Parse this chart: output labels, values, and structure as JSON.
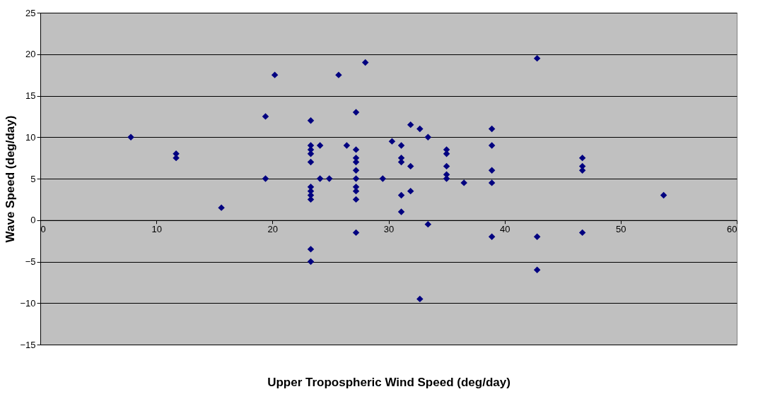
{
  "chart_data": {
    "type": "scatter",
    "xlabel": "Upper Tropospheric Wind Speed (deg/day)",
    "ylabel": "Wave Speed (deg/day)",
    "x": [
      7.8,
      11.7,
      11.7,
      15.6,
      19.4,
      19.4,
      20.2,
      23.3,
      23.3,
      23.3,
      23.3,
      23.3,
      23.3,
      23.3,
      23.3,
      23.3,
      23.3,
      23.3,
      24.1,
      24.1,
      24.9,
      25.7,
      26.4,
      27.2,
      27.2,
      27.2,
      27.2,
      27.2,
      27.2,
      27.2,
      27.2,
      27.2,
      27.2,
      28,
      29.5,
      30.3,
      31.1,
      31.1,
      31.1,
      31.1,
      31.1,
      31.9,
      31.9,
      31.9,
      32.7,
      32.7,
      33.4,
      33.4,
      35,
      35,
      35,
      35,
      35,
      36.5,
      38.9,
      38.9,
      38.9,
      38.9,
      38.9,
      42.8,
      42.8,
      42.8,
      46.7,
      46.7,
      46.7,
      46.7,
      53.7
    ],
    "series": [
      {
        "color": "#000080",
        "values": [
          10,
          8,
          7.5,
          1.5,
          12.5,
          5,
          17.5,
          12,
          9,
          8.5,
          8,
          7,
          4,
          3.5,
          3,
          2.5,
          -3.5,
          -5,
          9,
          5,
          5,
          17.5,
          9,
          13,
          8.5,
          7.5,
          7,
          6,
          5,
          4,
          3.5,
          2.5,
          -1.5,
          19,
          5,
          9.5,
          9,
          7.5,
          7,
          3,
          1,
          11.5,
          6.5,
          3.5,
          11,
          -9.5,
          10,
          -0.5,
          8.5,
          8,
          6.5,
          5.5,
          5,
          4.5,
          11,
          9,
          6,
          4.5,
          -2,
          19.5,
          -2,
          -6,
          7.5,
          6.5,
          6,
          -1.5,
          3
        ]
      }
    ],
    "xlim": [
      0,
      60
    ],
    "xticks": [
      0,
      10,
      20,
      30,
      40,
      50,
      60
    ],
    "ylim": [
      -15,
      25
    ],
    "yticks": [
      -15,
      -10,
      -5,
      0,
      5,
      10,
      15,
      20,
      25
    ],
    "grid": "y",
    "marker": "diamond"
  }
}
